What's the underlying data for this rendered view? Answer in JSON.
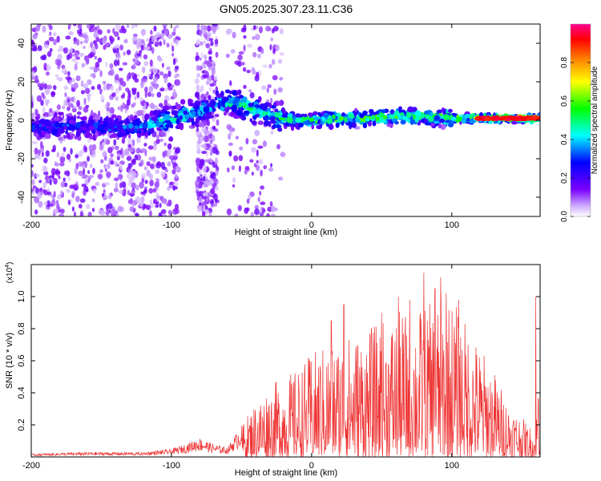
{
  "chart_data": [
    {
      "type": "heatmap",
      "title": "GN05.2025.307.23.11.C36",
      "xlabel": "Height of straight line (km)",
      "ylabel": "Frequency (Hz)",
      "xlim": [
        -200,
        163
      ],
      "ylim": [
        -50,
        50
      ],
      "xticks": [
        -200,
        -100,
        0,
        100
      ],
      "xtick_labels": [
        "-200",
        "-100",
        "0",
        "100"
      ],
      "yticks": [
        -40,
        -20,
        0,
        20,
        40
      ],
      "ytick_labels": [
        "-40",
        "-20",
        "0",
        "20",
        "40"
      ],
      "colorbar": {
        "label": "Normalized spectral amplitude",
        "range": [
          0,
          1
        ],
        "ticks": [
          0.0,
          0.2,
          0.4,
          0.6,
          0.8
        ],
        "tick_labels": [
          "0.0",
          "0.2",
          "0.4",
          "0.6",
          "0.8"
        ],
        "colors": [
          "#ffffff",
          "#7a00ff",
          "#0000ff",
          "#00ffff",
          "#00ff00",
          "#ffff00",
          "#ff7f00",
          "#ff0000",
          "#ff00a0"
        ]
      },
      "ridge": {
        "x": [
          -200,
          -180,
          -160,
          -140,
          -120,
          -100,
          -90,
          -80,
          -70,
          -60,
          -50,
          -40,
          -30,
          -20,
          -10,
          0,
          20,
          40,
          60,
          80,
          100,
          120,
          140,
          163
        ],
        "y": [
          -4,
          -3,
          -3,
          -4,
          -3,
          0,
          3,
          4,
          8,
          10,
          8,
          5,
          3,
          1,
          0,
          0,
          1,
          1,
          2,
          2,
          1,
          1,
          1,
          1
        ],
        "amplitude": [
          0.3,
          0.35,
          0.3,
          0.35,
          0.4,
          0.5,
          0.5,
          0.45,
          0.45,
          0.5,
          0.55,
          0.5,
          0.5,
          0.55,
          0.5,
          0.55,
          0.6,
          0.6,
          0.6,
          0.6,
          0.65,
          0.8,
          0.9,
          0.95
        ]
      }
    },
    {
      "type": "line",
      "xlabel": "Height of straight line (km)",
      "ylabel": "SNR (10 * v/v)",
      "multiplier": "(x10",
      "multiplier_exp": "4",
      "multiplier_close": ")",
      "color": "#ee3333",
      "xlim": [
        -200,
        163
      ],
      "ylim": [
        0,
        1.2
      ],
      "xticks": [
        -200,
        -100,
        0,
        100
      ],
      "xtick_labels": [
        "-200",
        "-100",
        "0",
        "100"
      ],
      "yticks": [
        0.2,
        0.4,
        0.6,
        0.8,
        1.0
      ],
      "ytick_labels": [
        "0.2",
        "0.4",
        "0.6",
        "0.8",
        "1.0"
      ],
      "envelope_x": [
        -200,
        -160,
        -120,
        -100,
        -90,
        -80,
        -70,
        -60,
        -50,
        -40,
        -30,
        -20,
        -10,
        0,
        20,
        40,
        60,
        80,
        100,
        120,
        130,
        140,
        150,
        155,
        160,
        163
      ],
      "envelope_y": [
        0.02,
        0.03,
        0.03,
        0.05,
        0.08,
        0.12,
        0.08,
        0.06,
        0.2,
        0.35,
        0.45,
        0.5,
        0.55,
        0.65,
        0.75,
        0.8,
        0.9,
        0.95,
        1.0,
        0.7,
        0.55,
        0.35,
        0.25,
        0.2,
        0.15,
        1.0
      ],
      "peaks": [
        {
          "x": 14,
          "y": 0.85
        },
        {
          "x": 23,
          "y": 0.95
        },
        {
          "x": 50,
          "y": 0.9
        },
        {
          "x": 62,
          "y": 1.0
        },
        {
          "x": 70,
          "y": 0.98
        },
        {
          "x": 80,
          "y": 1.15
        },
        {
          "x": 88,
          "y": 1.05
        },
        {
          "x": 92,
          "y": 1.12
        },
        {
          "x": 96,
          "y": 1.02
        },
        {
          "x": 105,
          "y": 0.98
        },
        {
          "x": 160,
          "y": 1.0
        }
      ]
    }
  ]
}
